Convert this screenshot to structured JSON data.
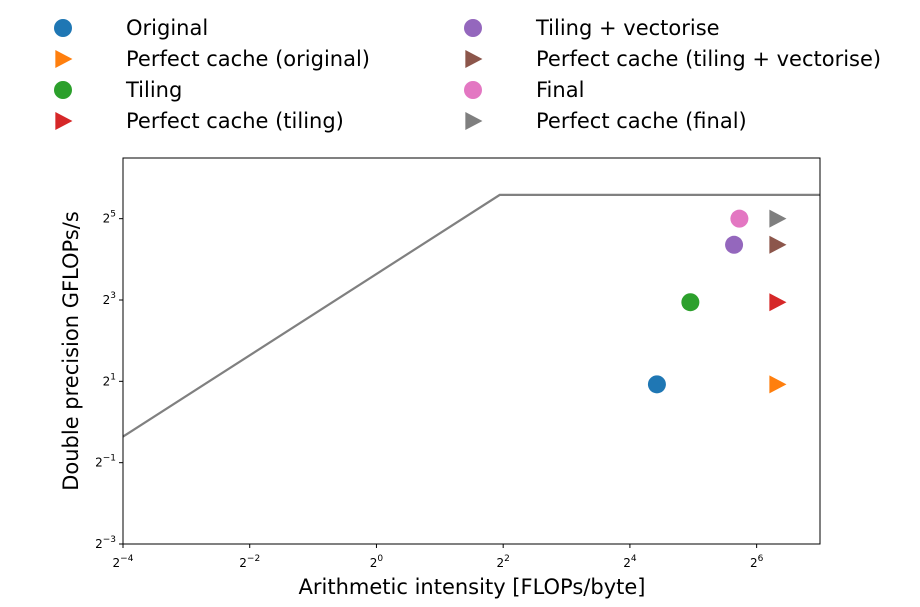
{
  "chart_data": {
    "type": "scatter",
    "title": "",
    "xlabel": "Arithmetic intensity [FLOPs/byte]",
    "ylabel": "Double precision GFLOPs/s",
    "xscale": "log2",
    "yscale": "log2",
    "xlim": [
      0.0625,
      128
    ],
    "ylim": [
      0.125,
      90
    ],
    "xticks": [
      {
        "value": 0.0625,
        "base": "2",
        "exp": "−4"
      },
      {
        "value": 0.25,
        "base": "2",
        "exp": "−2"
      },
      {
        "value": 1,
        "base": "2",
        "exp": "0"
      },
      {
        "value": 4,
        "base": "2",
        "exp": "2"
      },
      {
        "value": 16,
        "base": "2",
        "exp": "4"
      },
      {
        "value": 64,
        "base": "2",
        "exp": "6"
      }
    ],
    "yticks": [
      {
        "value": 0.125,
        "base": "2",
        "exp": "−3"
      },
      {
        "value": 0.5,
        "base": "2",
        "exp": "−1"
      },
      {
        "value": 2,
        "base": "2",
        "exp": "1"
      },
      {
        "value": 8,
        "base": "2",
        "exp": "3"
      },
      {
        "value": 32,
        "base": "2",
        "exp": "5"
      }
    ],
    "grid": false,
    "legend_position": "top",
    "roofline": {
      "color": "#808080",
      "points": [
        [
          0.0625,
          0.78
        ],
        [
          3.85,
          48
        ],
        [
          128,
          48
        ]
      ]
    },
    "series": [
      {
        "name": "Original",
        "marker": "circle",
        "color": "#1f77b4",
        "x": 21.5,
        "y": 1.9
      },
      {
        "name": "Perfect cache (original)",
        "marker": "triangle-right",
        "color": "#ff7f0e",
        "x": 80,
        "y": 1.9
      },
      {
        "name": "Tiling",
        "marker": "circle",
        "color": "#2ca02c",
        "x": 31,
        "y": 7.7
      },
      {
        "name": "Perfect cache (tiling)",
        "marker": "triangle-right",
        "color": "#d62728",
        "x": 80,
        "y": 7.7
      },
      {
        "name": "Tiling + vectorise",
        "marker": "circle",
        "color": "#9467bd",
        "x": 50,
        "y": 20.5
      },
      {
        "name": "Perfect cache (tiling + vectorise)",
        "marker": "triangle-right",
        "color": "#8c564b",
        "x": 80,
        "y": 20.5
      },
      {
        "name": "Final",
        "marker": "circle",
        "color": "#e377c2",
        "x": 53,
        "y": 32
      },
      {
        "name": "Perfect cache (final)",
        "marker": "triangle-right",
        "color": "#7f7f7f",
        "x": 80,
        "y": 32
      }
    ]
  }
}
